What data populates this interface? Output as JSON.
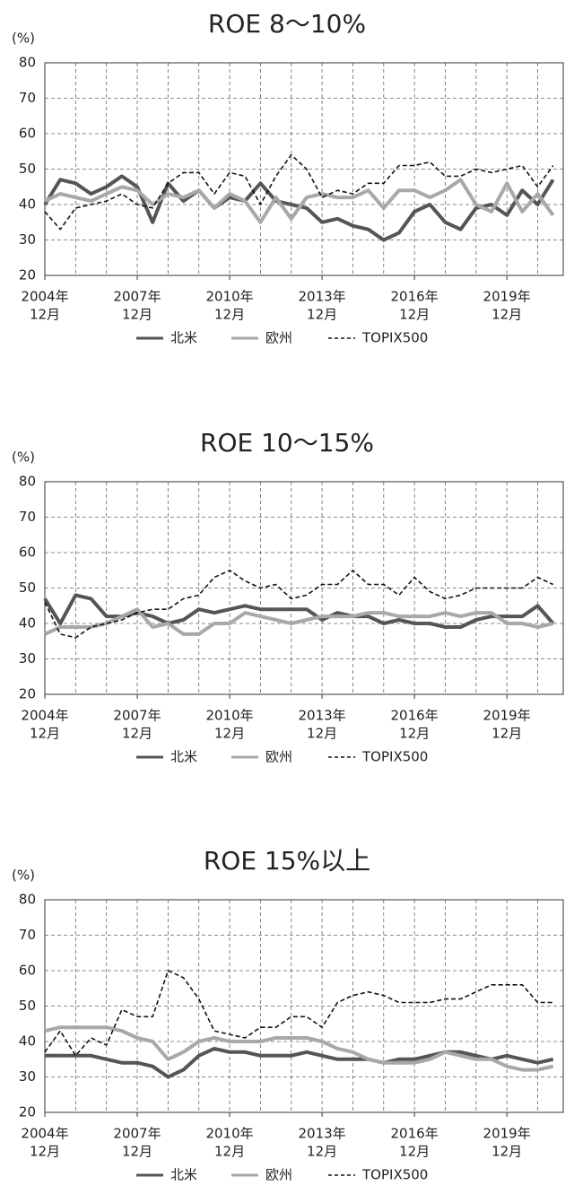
{
  "chart_data": [
    {
      "type": "line",
      "title": "ROE 8～10%",
      "y_label": "(%)",
      "x": [
        2004.92,
        2005.42,
        2005.92,
        2006.42,
        2006.92,
        2007.42,
        2007.92,
        2008.42,
        2008.92,
        2009.42,
        2009.92,
        2010.42,
        2010.92,
        2011.42,
        2011.92,
        2012.42,
        2012.92,
        2013.42,
        2013.92,
        2014.42,
        2014.92,
        2015.42,
        2015.92,
        2016.42,
        2016.92,
        2017.42,
        2017.92,
        2018.42,
        2018.92,
        2019.42,
        2019.92,
        2020.42,
        2020.92,
        2021.42
      ],
      "series": [
        {
          "name": "北米",
          "color": "#555555",
          "dash": false,
          "values": [
            40,
            47,
            46,
            43,
            45,
            48,
            45,
            35,
            46,
            41,
            44,
            39,
            42,
            41,
            46,
            41,
            40,
            39,
            35,
            36,
            34,
            33,
            30,
            32,
            38,
            40,
            35,
            33,
            39,
            40,
            37,
            44,
            40,
            47
          ]
        },
        {
          "name": "欧州",
          "color": "#a8a8a8",
          "dash": false,
          "values": [
            41,
            43,
            42,
            41,
            43,
            45,
            44,
            40,
            43,
            42,
            44,
            39,
            43,
            41,
            35,
            42,
            36,
            42,
            43,
            42,
            42,
            44,
            39,
            44,
            44,
            42,
            44,
            47,
            40,
            38,
            46,
            38,
            43,
            37
          ]
        },
        {
          "name": "TOPIX500",
          "color": "#111111",
          "dash": true,
          "values": [
            38,
            33,
            39,
            40,
            41,
            43,
            40,
            39,
            46,
            49,
            49,
            43,
            49,
            48,
            40,
            48,
            54,
            50,
            42,
            44,
            43,
            46,
            46,
            51,
            51,
            52,
            48,
            48,
            50,
            49,
            50,
            51,
            45,
            51
          ]
        }
      ],
      "xlim": [
        2004.92,
        2021.75
      ],
      "ylim": [
        20,
        80
      ],
      "yticks": [
        20,
        30,
        40,
        50,
        60,
        70,
        80
      ],
      "xticks": [
        {
          "value": 2004.92,
          "label": [
            "2004年",
            "12月"
          ]
        },
        {
          "value": 2007.92,
          "label": [
            "2007年",
            "12月"
          ]
        },
        {
          "value": 2010.92,
          "label": [
            "2010年",
            "12月"
          ]
        },
        {
          "value": 2013.92,
          "label": [
            "2013年",
            "12月"
          ]
        },
        {
          "value": 2016.92,
          "label": [
            "2016年",
            "12月"
          ]
        },
        {
          "value": 2019.92,
          "label": [
            "2019年",
            "12月"
          ]
        }
      ],
      "xminor": [
        2005.92,
        2006.92,
        2007.92,
        2008.92,
        2009.92,
        2010.92,
        2011.92,
        2012.92,
        2013.92,
        2014.92,
        2015.92,
        2016.92,
        2017.92,
        2018.92,
        2019.92,
        2020.92
      ],
      "grid": true
    },
    {
      "type": "line",
      "title": "ROE 10～15%",
      "y_label": "(%)",
      "x": [
        2004.92,
        2005.42,
        2005.92,
        2006.42,
        2006.92,
        2007.42,
        2007.92,
        2008.42,
        2008.92,
        2009.42,
        2009.92,
        2010.42,
        2010.92,
        2011.42,
        2011.92,
        2012.42,
        2012.92,
        2013.42,
        2013.92,
        2014.42,
        2014.92,
        2015.42,
        2015.92,
        2016.42,
        2016.92,
        2017.42,
        2017.92,
        2018.42,
        2018.92,
        2019.42,
        2019.92,
        2020.42,
        2020.92,
        2021.42
      ],
      "series": [
        {
          "name": "北米",
          "color": "#555555",
          "dash": false,
          "values": [
            47,
            40,
            48,
            47,
            42,
            42,
            43,
            42,
            40,
            41,
            44,
            43,
            44,
            45,
            44,
            44,
            44,
            44,
            41,
            43,
            42,
            42,
            40,
            41,
            40,
            40,
            39,
            39,
            41,
            42,
            42,
            42,
            45,
            40
          ]
        },
        {
          "name": "欧州",
          "color": "#a8a8a8",
          "dash": false,
          "values": [
            37,
            39,
            39,
            39,
            40,
            42,
            44,
            39,
            40,
            37,
            37,
            40,
            40,
            43,
            42,
            41,
            40,
            41,
            42,
            42,
            42,
            43,
            43,
            42,
            42,
            42,
            43,
            42,
            43,
            43,
            40,
            40,
            39,
            40
          ]
        },
        {
          "name": "TOPIX500",
          "color": "#111111",
          "dash": true,
          "values": [
            46,
            37,
            36,
            39,
            40,
            41,
            43,
            44,
            44,
            47,
            48,
            53,
            55,
            52,
            50,
            51,
            47,
            48,
            51,
            51,
            55,
            51,
            51,
            48,
            53,
            49,
            47,
            48,
            50,
            50,
            50,
            50,
            53,
            51
          ]
        }
      ],
      "xlim": [
        2004.92,
        2021.75
      ],
      "ylim": [
        20,
        80
      ],
      "yticks": [
        20,
        30,
        40,
        50,
        60,
        70,
        80
      ],
      "xticks": [
        {
          "value": 2004.92,
          "label": [
            "2004年",
            "12月"
          ]
        },
        {
          "value": 2007.92,
          "label": [
            "2007年",
            "12月"
          ]
        },
        {
          "value": 2010.92,
          "label": [
            "2010年",
            "12月"
          ]
        },
        {
          "value": 2013.92,
          "label": [
            "2013年",
            "12月"
          ]
        },
        {
          "value": 2016.92,
          "label": [
            "2016年",
            "12月"
          ]
        },
        {
          "value": 2019.92,
          "label": [
            "2019年",
            "12月"
          ]
        }
      ],
      "xminor": [
        2005.92,
        2006.92,
        2007.92,
        2008.92,
        2009.92,
        2010.92,
        2011.92,
        2012.92,
        2013.92,
        2014.92,
        2015.92,
        2016.92,
        2017.92,
        2018.92,
        2019.92,
        2020.92
      ],
      "grid": true
    },
    {
      "type": "line",
      "title": "ROE 15%以上",
      "y_label": "(%)",
      "x": [
        2004.92,
        2005.42,
        2005.92,
        2006.42,
        2006.92,
        2007.42,
        2007.92,
        2008.42,
        2008.92,
        2009.42,
        2009.92,
        2010.42,
        2010.92,
        2011.42,
        2011.92,
        2012.42,
        2012.92,
        2013.42,
        2013.92,
        2014.42,
        2014.92,
        2015.42,
        2015.92,
        2016.42,
        2016.92,
        2017.42,
        2017.92,
        2018.42,
        2018.92,
        2019.42,
        2019.92,
        2020.42,
        2020.92,
        2021.42
      ],
      "series": [
        {
          "name": "北米",
          "color": "#555555",
          "dash": false,
          "values": [
            36,
            36,
            36,
            36,
            35,
            34,
            34,
            33,
            30,
            32,
            36,
            38,
            37,
            37,
            36,
            36,
            36,
            37,
            36,
            35,
            35,
            35,
            34,
            35,
            35,
            36,
            37,
            37,
            36,
            35,
            36,
            35,
            34,
            35
          ]
        },
        {
          "name": "欧州",
          "color": "#a8a8a8",
          "dash": false,
          "values": [
            43,
            44,
            44,
            44,
            44,
            43,
            41,
            40,
            35,
            37,
            40,
            41,
            40,
            40,
            40,
            41,
            41,
            41,
            40,
            38,
            37,
            35,
            34,
            34,
            34,
            35,
            37,
            36,
            35,
            35,
            33,
            32,
            32,
            33
          ]
        },
        {
          "name": "TOPIX500",
          "color": "#111111",
          "dash": true,
          "values": [
            37,
            43,
            36,
            41,
            39,
            49,
            47,
            47,
            60,
            58,
            52,
            43,
            42,
            41,
            44,
            44,
            47,
            47,
            44,
            51,
            53,
            54,
            53,
            51,
            51,
            51,
            52,
            52,
            54,
            56,
            56,
            56,
            51,
            51
          ]
        }
      ],
      "xlim": [
        2004.92,
        2021.75
      ],
      "ylim": [
        20,
        80
      ],
      "yticks": [
        20,
        30,
        40,
        50,
        60,
        70,
        80
      ],
      "xticks": [
        {
          "value": 2004.92,
          "label": [
            "2004年",
            "12月"
          ]
        },
        {
          "value": 2007.92,
          "label": [
            "2007年",
            "12月"
          ]
        },
        {
          "value": 2010.92,
          "label": [
            "2010年",
            "12月"
          ]
        },
        {
          "value": 2013.92,
          "label": [
            "2013年",
            "12月"
          ]
        },
        {
          "value": 2016.92,
          "label": [
            "2016年",
            "12月"
          ]
        },
        {
          "value": 2019.92,
          "label": [
            "2019年",
            "12月"
          ]
        }
      ],
      "xminor": [
        2005.92,
        2006.92,
        2007.92,
        2008.92,
        2009.92,
        2010.92,
        2011.92,
        2012.92,
        2013.92,
        2014.92,
        2015.92,
        2016.92,
        2017.92,
        2018.92,
        2019.92,
        2020.92
      ],
      "grid": true
    }
  ]
}
